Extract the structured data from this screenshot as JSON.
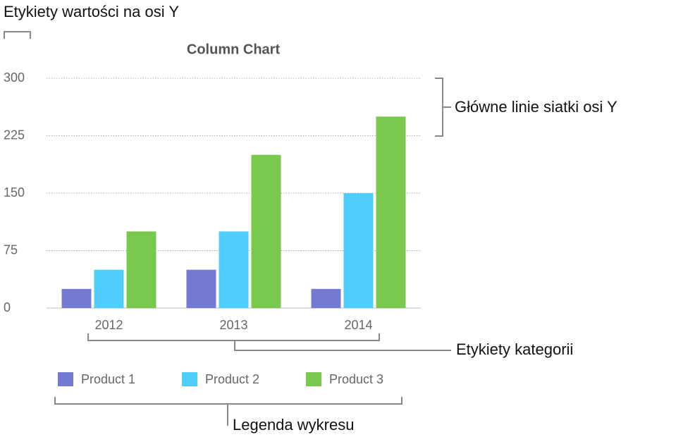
{
  "chart_data": {
    "type": "bar",
    "title": "Column Chart",
    "categories": [
      "2012",
      "2013",
      "2014"
    ],
    "series": [
      {
        "name": "Product 1",
        "color": "#7479d1",
        "values": [
          25,
          50,
          25
        ]
      },
      {
        "name": "Product 2",
        "color": "#4fcdfb",
        "values": [
          50,
          100,
          150
        ]
      },
      {
        "name": "Product 3",
        "color": "#79c94f",
        "values": [
          100,
          200,
          250
        ]
      }
    ],
    "ylim": [
      0,
      300
    ],
    "yticks": [
      0,
      75,
      150,
      225,
      300
    ],
    "grid": true,
    "legend": "bottom",
    "annotations": [
      "Etykiety wartości na osi Y",
      "Główne linie siatki osi Y",
      "Etykiety kategorii",
      "Legenda wykresu"
    ]
  }
}
